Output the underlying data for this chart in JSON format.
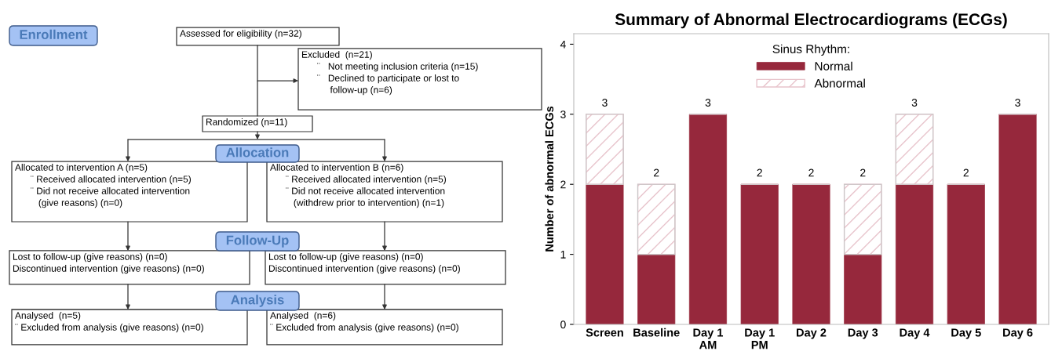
{
  "chart_data": [
    {
      "type": "other",
      "annotations": [
        "Enrollment",
        "Assessed for eligibility (n=32)",
        "Excluded  (n=21)\n      ¨   Not meeting inclusion criteria (n=15)\n      ¨   Declined to participate or lost to\n           follow-up (n=6)",
        "Randomized (n=11)",
        "Allocation",
        "Allocated to intervention A (n=5)\n      ¨ Received allocated intervention (n=5)\n      ¨ Did not receive allocated intervention\n         (give reasons) (n=0)",
        "Allocated to intervention B (n=6)\n      ¨ Received allocated intervention (n=5)\n      ¨ Did not receive allocated intervention\n         (withdrew prior to intervention) (n=1)",
        "Follow-Up",
        "Lost to follow-up (give reasons) (n=0)\nDiscontinued intervention (give reasons) (n=0)",
        "Lost to follow-up (give reasons) (n=0)\nDiscontinued intervention (give reasons) (n=0)",
        "Analysis",
        "Analysed  (n=5)\n¨ Excluded from analysis (give reasons) (n=0)",
        "Analysed  (n=6)\n¨ Excluded from analysis (give reasons) (n=0)"
      ]
    },
    {
      "type": "bar",
      "title": "Summary of Abnormal Electrocardiograms (ECGs)",
      "ylabel": "Number of abnormal ECGs",
      "categories": [
        "Screen",
        "Baseline",
        "Day 1\nAM",
        "Day 1\nPM",
        "Day 2",
        "Day 3",
        "Day 4",
        "Day 5",
        "Day 6"
      ],
      "stacked": true,
      "legend_title": "Sinus Rhythm:",
      "legend": "top",
      "series": [
        {
          "name": "Normal",
          "color": "#96283c",
          "values": [
            2,
            1,
            3,
            2,
            2,
            1,
            2,
            2,
            3
          ]
        },
        {
          "name": "Abnormal",
          "color": "#e8c4cc",
          "values": [
            1,
            1,
            0,
            0,
            0,
            1,
            1,
            0,
            0
          ]
        }
      ],
      "totals": [
        "3",
        "2",
        "3",
        "2",
        "2",
        "2",
        "3",
        "2",
        "3"
      ],
      "ylim": [
        0,
        4.15
      ],
      "yticks": [
        0,
        1,
        2,
        3,
        4
      ]
    }
  ]
}
